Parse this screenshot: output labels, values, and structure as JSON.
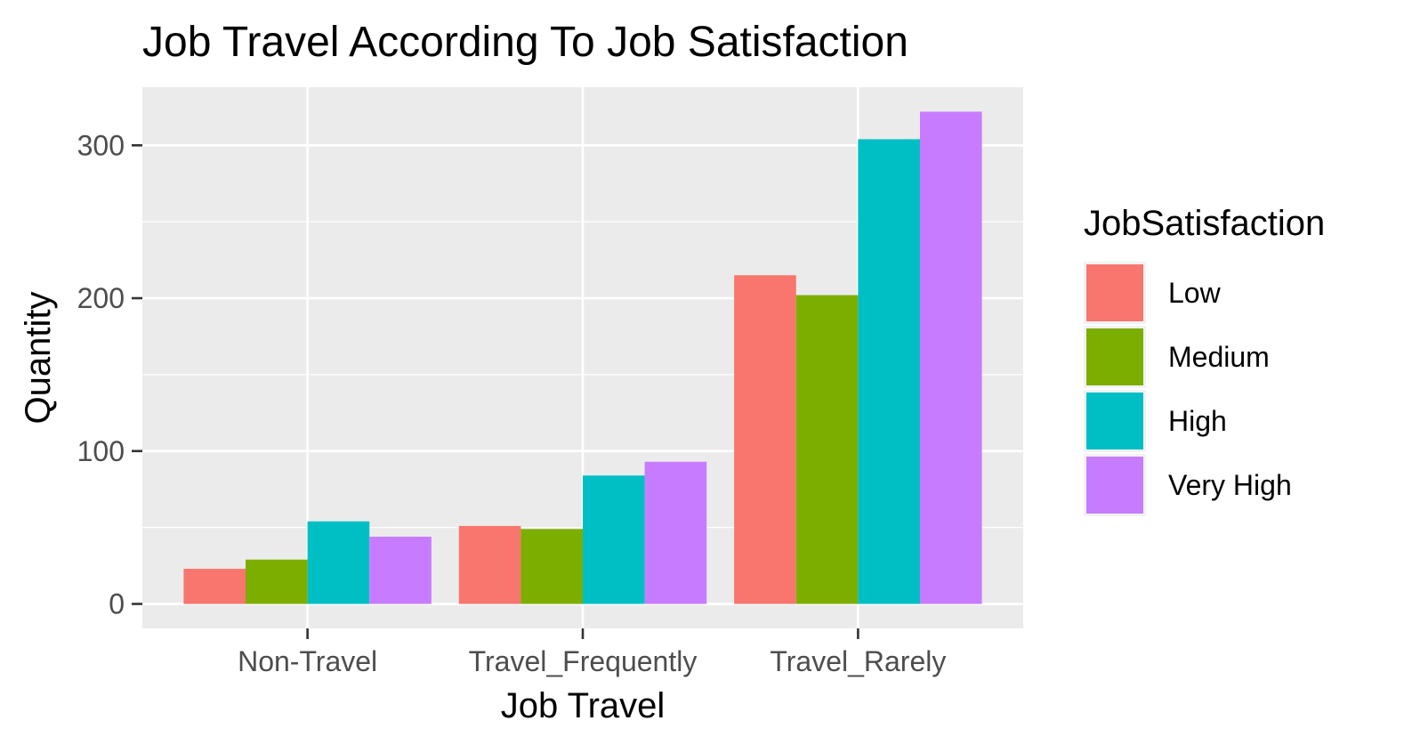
{
  "chart_data": {
    "type": "bar",
    "title": "Job Travel According To Job Satisfaction",
    "xlabel": "Job Travel",
    "ylabel": "Quantity",
    "categories": [
      "Non-Travel",
      "Travel_Frequently",
      "Travel_Rarely"
    ],
    "series": [
      {
        "name": "Low",
        "values": [
          23,
          51,
          215
        ],
        "color": "#F8766D"
      },
      {
        "name": "Medium",
        "values": [
          29,
          49,
          202
        ],
        "color": "#7CAE00"
      },
      {
        "name": "High",
        "values": [
          54,
          84,
          304
        ],
        "color": "#00BFC4"
      },
      {
        "name": "Very High",
        "values": [
          44,
          93,
          322
        ],
        "color": "#C77CFF"
      }
    ],
    "ylim": [
      -16,
      338
    ],
    "yticks": [
      "0",
      "100",
      "200",
      "300"
    ],
    "grid": true,
    "legend": {
      "title": "JobSatisfaction",
      "position": "right"
    },
    "panel_color": "#EBEBEB"
  }
}
